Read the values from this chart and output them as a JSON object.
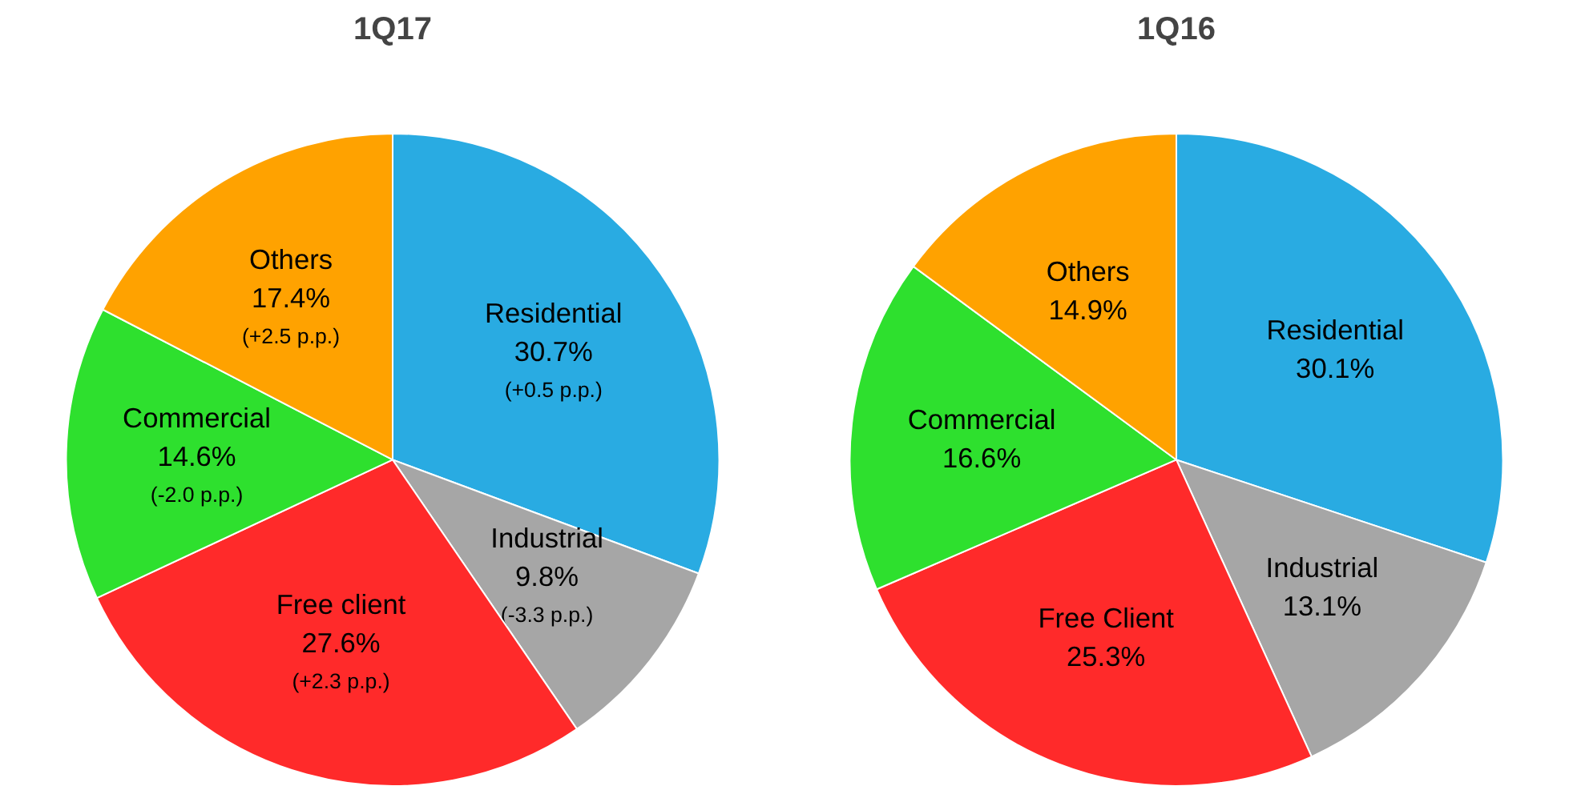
{
  "chart_data": [
    {
      "type": "pie",
      "title": "1Q17",
      "categories": [
        "Residential",
        "Industrial",
        "Free client",
        "Commercial",
        "Others"
      ],
      "values": [
        30.7,
        9.8,
        27.6,
        14.6,
        17.4
      ],
      "colors": [
        "#29abe2",
        "#a6a6a6",
        "#ff2a2a",
        "#2ee02e",
        "#ffa200"
      ],
      "value_labels": [
        "30.7%",
        "9.8%",
        "27.6%",
        "14.6%",
        "17.4%"
      ],
      "annotations": [
        {
          "text": "(+0.5 p.p.)",
          "x": "Residential"
        },
        {
          "text": "(-3.3 p.p.)",
          "x": "Industrial"
        },
        {
          "text": "(+2.3 p.p.)",
          "x": "Free client"
        },
        {
          "text": "(-2.0 p.p.)",
          "x": "Commercial"
        },
        {
          "text": "(+2.5 p.p.)",
          "x": "Others"
        }
      ]
    },
    {
      "type": "pie",
      "title": "1Q16",
      "categories": [
        "Residential",
        "Industrial",
        "Free Client",
        "Commercial",
        "Others"
      ],
      "values": [
        30.1,
        13.1,
        25.3,
        16.6,
        14.9
      ],
      "colors": [
        "#29abe2",
        "#a6a6a6",
        "#ff2a2a",
        "#2ee02e",
        "#ffa200"
      ],
      "value_labels": [
        "30.1%",
        "13.1%",
        "25.3%",
        "16.6%",
        "14.9%"
      ]
    }
  ]
}
